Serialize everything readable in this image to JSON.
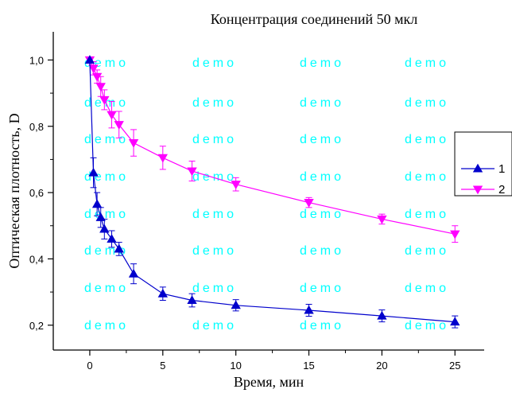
{
  "chart_data": {
    "type": "line",
    "title": "Концентрация соединений 50 мкл",
    "xlabel": "Время, мин",
    "ylabel": "Оптическая плотность, D",
    "xlim": [
      -2.5,
      27
    ],
    "ylim": [
      0.125,
      1.085
    ],
    "x_ticks": [
      0,
      5,
      10,
      15,
      20,
      25
    ],
    "x_tick_labels": [
      "0",
      "5",
      "10",
      "15",
      "20",
      "25"
    ],
    "y_ticks": [
      0.2,
      0.4,
      0.6,
      0.8,
      1.0
    ],
    "y_tick_labels": [
      "0,2",
      "0,4",
      "0,6",
      "0,8",
      "1,0"
    ],
    "legend_position": "right",
    "watermark": "demo",
    "series": [
      {
        "name": "1",
        "color": "#0000cc",
        "marker": "triangle-up",
        "x": [
          0,
          0.25,
          0.5,
          0.75,
          1,
          1.5,
          2,
          3,
          5,
          7,
          10,
          15,
          20,
          25
        ],
        "y": [
          1.0,
          0.66,
          0.565,
          0.525,
          0.49,
          0.46,
          0.43,
          0.355,
          0.295,
          0.275,
          0.26,
          0.245,
          0.228,
          0.21
        ],
        "err": [
          0,
          0.045,
          0.035,
          0.03,
          0.03,
          0.025,
          0.02,
          0.03,
          0.02,
          0.02,
          0.017,
          0.018,
          0.018,
          0.018
        ]
      },
      {
        "name": "2",
        "color": "#ff00ff",
        "marker": "triangle-down",
        "x": [
          0,
          0.25,
          0.5,
          0.75,
          1,
          1.5,
          2,
          3,
          5,
          7,
          10,
          15,
          20,
          25
        ],
        "y": [
          1.0,
          0.975,
          0.95,
          0.92,
          0.88,
          0.835,
          0.805,
          0.75,
          0.705,
          0.665,
          0.625,
          0.57,
          0.52,
          0.475
        ],
        "err": [
          0,
          0.02,
          0.02,
          0.03,
          0.03,
          0.04,
          0.04,
          0.04,
          0.035,
          0.03,
          0.02,
          0.015,
          0.015,
          0.025
        ]
      }
    ]
  }
}
